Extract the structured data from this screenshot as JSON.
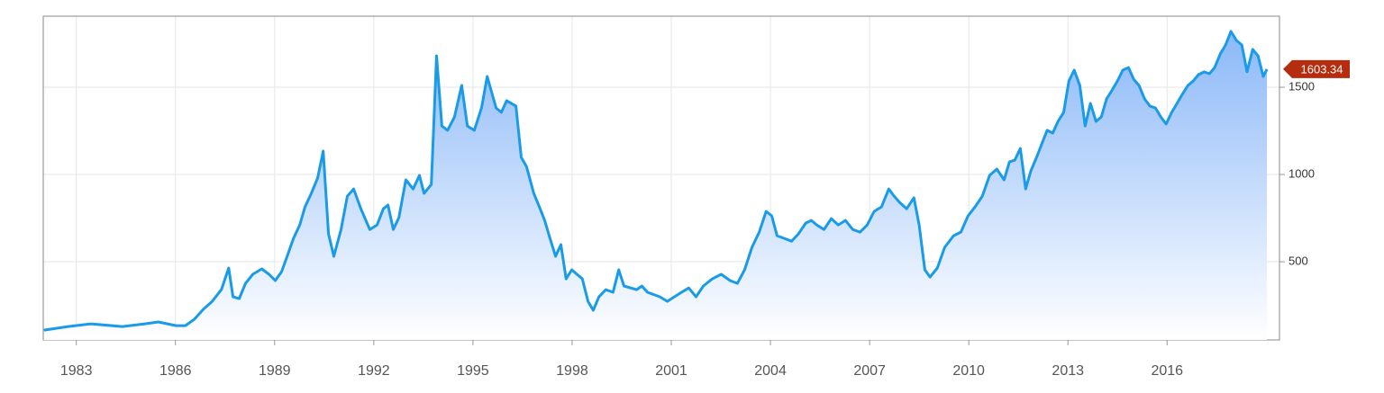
{
  "chart_data": {
    "type": "area",
    "x": [
      1982.02,
      1982.75,
      1983.44,
      1984.39,
      1985.07,
      1985.48,
      1986.02,
      1986.3,
      1986.57,
      1986.84,
      1987.11,
      1987.39,
      1987.61,
      1987.74,
      1987.93,
      1988.12,
      1988.34,
      1988.61,
      1988.83,
      1989.02,
      1989.21,
      1989.38,
      1989.57,
      1989.76,
      1989.92,
      1990.11,
      1990.3,
      1990.47,
      1990.63,
      1990.79,
      1991.01,
      1991.2,
      1991.39,
      1991.61,
      1991.88,
      1992.1,
      1992.29,
      1992.43,
      1992.59,
      1992.76,
      1992.97,
      1993.19,
      1993.38,
      1993.52,
      1993.74,
      1993.9,
      1994.06,
      1994.23,
      1994.44,
      1994.66,
      1994.83,
      1995.04,
      1995.26,
      1995.43,
      1995.7,
      1995.86,
      1996.02,
      1996.3,
      1996.46,
      1996.62,
      1996.84,
      1997.01,
      1997.17,
      1997.33,
      1997.5,
      1997.66,
      1997.82,
      1997.99,
      1998.31,
      1998.48,
      1998.64,
      1998.81,
      1999.02,
      1999.24,
      1999.41,
      1999.57,
      1999.95,
      2000.11,
      2000.28,
      2000.66,
      2000.88,
      2001.09,
      2001.31,
      2001.53,
      2001.75,
      2001.97,
      2002.24,
      2002.51,
      2002.78,
      2003.0,
      2003.22,
      2003.44,
      2003.66,
      2003.87,
      2004.04,
      2004.2,
      2004.42,
      2004.64,
      2004.85,
      2005.07,
      2005.24,
      2005.4,
      2005.62,
      2005.84,
      2006.05,
      2006.27,
      2006.49,
      2006.71,
      2006.93,
      2007.14,
      2007.36,
      2007.58,
      2007.74,
      2007.91,
      2008.12,
      2008.34,
      2008.5,
      2008.67,
      2008.83,
      2009.05,
      2009.27,
      2009.54,
      2009.76,
      2009.98,
      2010.19,
      2010.41,
      2010.63,
      2010.85,
      2011.07,
      2011.23,
      2011.39,
      2011.56,
      2011.72,
      2011.88,
      2012.05,
      2012.21,
      2012.37,
      2012.54,
      2012.7,
      2012.87,
      2013.03,
      2013.19,
      2013.36,
      2013.52,
      2013.68,
      2013.85,
      2014.01,
      2014.17,
      2014.34,
      2014.5,
      2014.66,
      2014.83,
      2014.99,
      2015.15,
      2015.32,
      2015.48,
      2015.65,
      2015.81,
      2015.97,
      2016.14,
      2016.3,
      2016.46,
      2016.63,
      2016.79,
      2016.95,
      2017.12,
      2017.28,
      2017.44,
      2017.61,
      2017.77,
      2017.93,
      2018.1,
      2018.26,
      2018.42,
      2018.59,
      2018.75,
      2018.91,
      2019.02
    ],
    "values": [
      108,
      129,
      144,
      129,
      144,
      155,
      134,
      134,
      170,
      227,
      273,
      340,
      464,
      299,
      289,
      376,
      428,
      459,
      428,
      392,
      443,
      531,
      634,
      711,
      814,
      892,
      979,
      1134,
      660,
      531,
      685,
      876,
      917,
      804,
      685,
      711,
      804,
      825,
      685,
      753,
      969,
      917,
      995,
      892,
      943,
      1680,
      1278,
      1253,
      1330,
      1510,
      1278,
      1253,
      1381,
      1562,
      1381,
      1356,
      1423,
      1392,
      1098,
      1046,
      892,
      814,
      737,
      634,
      531,
      598,
      402,
      454,
      402,
      273,
      222,
      299,
      340,
      325,
      454,
      361,
      340,
      361,
      325,
      299,
      273,
      299,
      325,
      350,
      299,
      361,
      402,
      428,
      392,
      376,
      454,
      582,
      670,
      789,
      763,
      649,
      634,
      618,
      660,
      722,
      737,
      711,
      685,
      747,
      711,
      737,
      685,
      670,
      711,
      789,
      814,
      917,
      876,
      840,
      804,
      866,
      711,
      454,
      412,
      464,
      582,
      649,
      670,
      763,
      814,
      876,
      995,
      1031,
      969,
      1072,
      1082,
      1149,
      917,
      1021,
      1098,
      1175,
      1253,
      1237,
      1304,
      1356,
      1536,
      1598,
      1510,
      1278,
      1407,
      1304,
      1330,
      1433,
      1485,
      1536,
      1598,
      1613,
      1546,
      1510,
      1433,
      1392,
      1381,
      1330,
      1289,
      1356,
      1407,
      1459,
      1510,
      1536,
      1572,
      1588,
      1577,
      1613,
      1691,
      1742,
      1820,
      1768,
      1742,
      1588,
      1717,
      1680,
      1562,
      1603.34
    ],
    "color": "#1a9be8",
    "xlim": [
      1982.0,
      2019.4
    ],
    "ylim": [
      52,
      1907
    ],
    "xticks": [
      1983,
      1986,
      1989,
      1992,
      1995,
      1998,
      2001,
      2004,
      2007,
      2010,
      2013,
      2016
    ],
    "yticks": [
      500,
      1000,
      1500
    ],
    "grid": true
  }
}
